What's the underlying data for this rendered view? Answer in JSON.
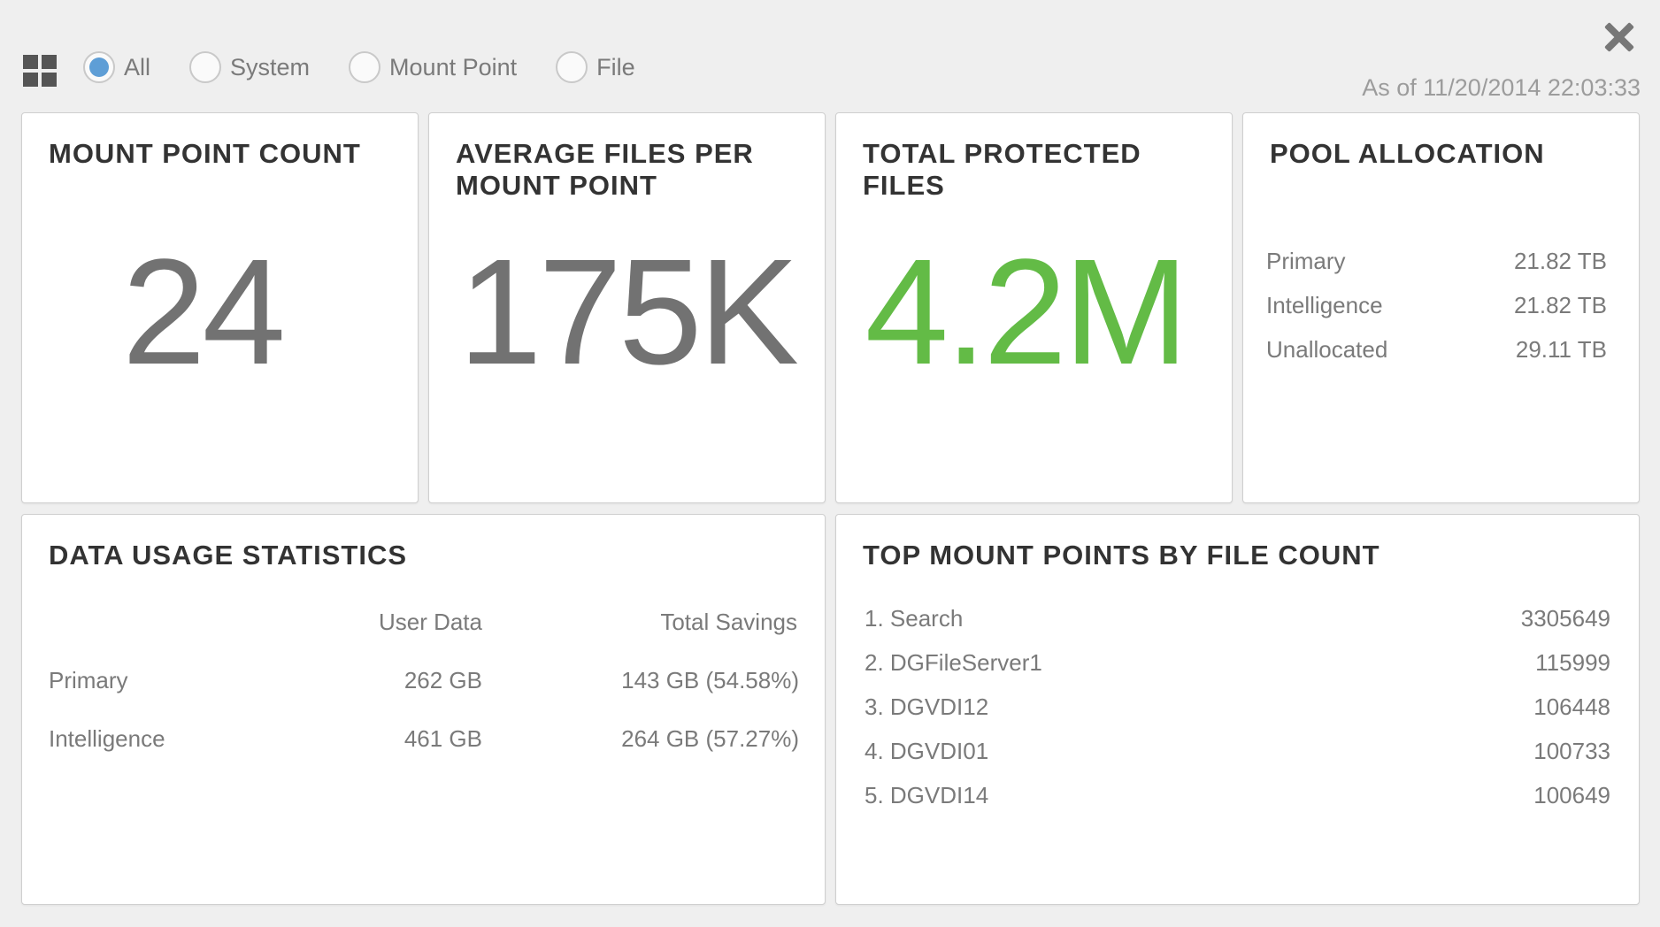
{
  "filter": {
    "options": [
      {
        "label": "All",
        "checked": true
      },
      {
        "label": "System",
        "checked": false
      },
      {
        "label": "Mount Point",
        "checked": false
      },
      {
        "label": "File",
        "checked": false
      }
    ]
  },
  "timestamp": "As of 11/20/2014 22:03:33",
  "cards": {
    "mount_point_count": {
      "title": "MOUNT POINT COUNT",
      "value": "24"
    },
    "avg_files": {
      "title": "AVERAGE FILES PER MOUNT POINT",
      "value": "175K"
    },
    "total_protected": {
      "title": "TOTAL PROTECTED FILES",
      "value": "4.2M",
      "value_color": "#63bb46"
    },
    "pool_allocation": {
      "title": "POOL ALLOCATION",
      "rows": [
        {
          "label": "Primary",
          "value": "21.82 TB"
        },
        {
          "label": "Intelligence",
          "value": "21.82 TB"
        },
        {
          "label": "Unallocated",
          "value": "29.11 TB"
        }
      ]
    },
    "data_usage": {
      "title": "DATA USAGE STATISTICS",
      "col_user_data": "User Data",
      "col_total_savings": "Total Savings",
      "rows": [
        {
          "label": "Primary",
          "user_data": "262 GB",
          "total_savings": "143 GB (54.58%)"
        },
        {
          "label": "Intelligence",
          "user_data": "461 GB",
          "total_savings": "264 GB (57.27%)"
        }
      ]
    },
    "top_mount_points": {
      "title": "TOP MOUNT POINTS BY FILE COUNT",
      "rows": [
        {
          "name": "1. Search",
          "count": "3305649"
        },
        {
          "name": "2. DGFileServer1",
          "count": "115999"
        },
        {
          "name": "3. DGVDI12",
          "count": "106448"
        },
        {
          "name": "4. DGVDI01",
          "count": "100733"
        },
        {
          "name": "5. DGVDI14",
          "count": "100649"
        }
      ]
    }
  },
  "colors": {
    "accent_radio": "#5e9ed6",
    "highlight_green": "#63bb46"
  }
}
